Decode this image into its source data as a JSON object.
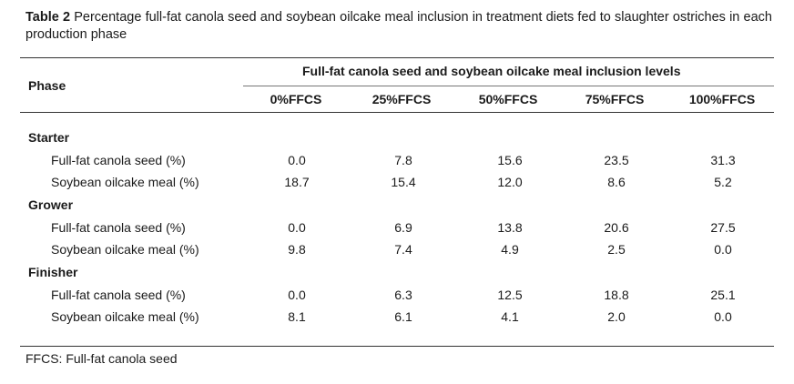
{
  "caption": {
    "label": "Table 2",
    "text": "Percentage full-fat canola seed and soybean oilcake meal inclusion in treatment diets fed to slaughter ostriches in each production phase"
  },
  "table": {
    "phase_header": "Phase",
    "group_header": "Full-fat canola seed and soybean oilcake meal inclusion levels",
    "columns": [
      "0%FFCS",
      "25%FFCS",
      "50%FFCS",
      "75%FFCS",
      "100%FFCS"
    ],
    "sections": [
      {
        "name": "Starter",
        "rows": [
          {
            "label": "Full-fat canola seed (%)",
            "values": [
              "0.0",
              "7.8",
              "15.6",
              "23.5",
              "31.3"
            ]
          },
          {
            "label": "Soybean oilcake meal (%)",
            "values": [
              "18.7",
              "15.4",
              "12.0",
              "8.6",
              "5.2"
            ]
          }
        ]
      },
      {
        "name": "Grower",
        "rows": [
          {
            "label": "Full-fat canola seed (%)",
            "values": [
              "0.0",
              "6.9",
              "13.8",
              "20.6",
              "27.5"
            ]
          },
          {
            "label": "Soybean oilcake meal (%)",
            "values": [
              "9.8",
              "7.4",
              "4.9",
              "2.5",
              "0.0"
            ]
          }
        ]
      },
      {
        "name": "Finisher",
        "rows": [
          {
            "label": "Full-fat canola seed (%)",
            "values": [
              "0.0",
              "6.3",
              "12.5",
              "18.8",
              "25.1"
            ]
          },
          {
            "label": "Soybean oilcake meal (%)",
            "values": [
              "8.1",
              "6.1",
              "4.1",
              "2.0",
              "0.0"
            ]
          }
        ]
      }
    ]
  },
  "footnote": "FFCS: Full-fat canola seed"
}
